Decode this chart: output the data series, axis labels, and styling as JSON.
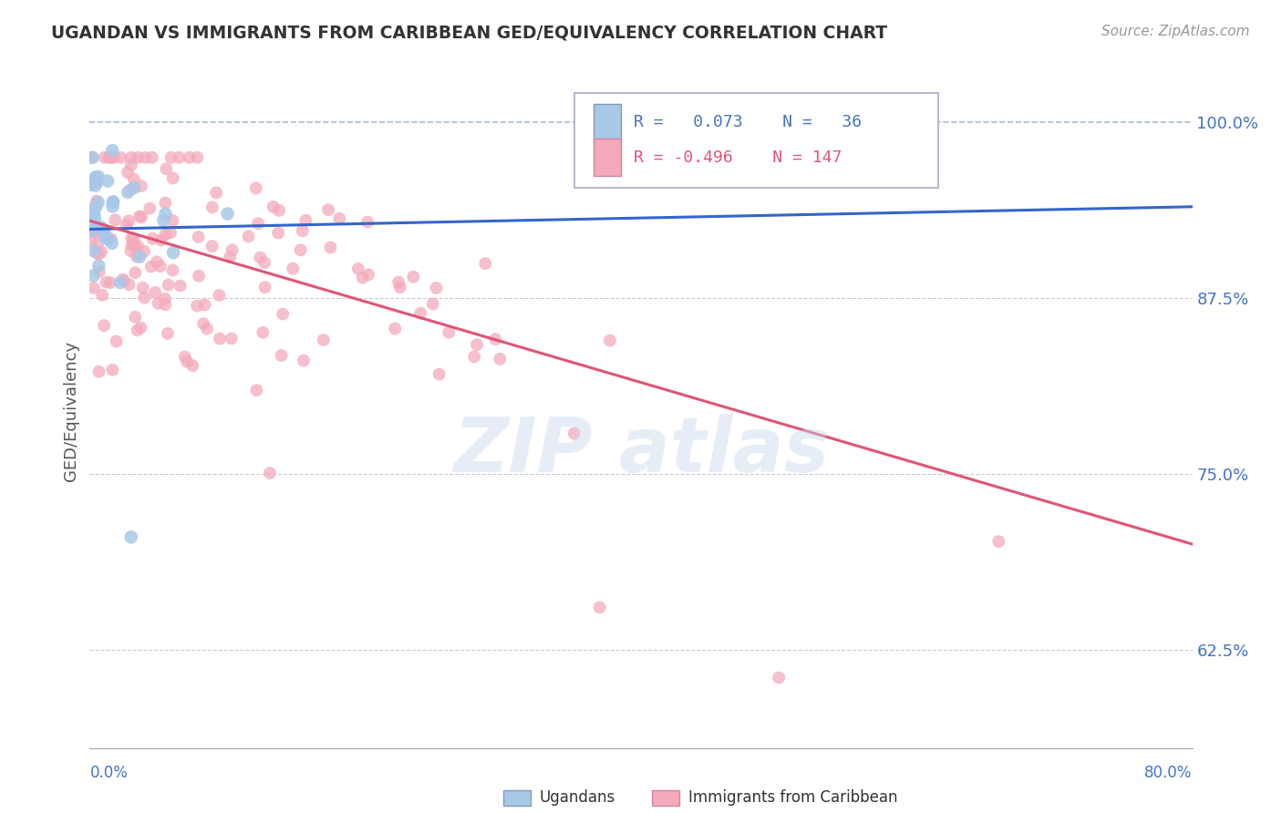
{
  "title": "UGANDAN VS IMMIGRANTS FROM CARIBBEAN GED/EQUIVALENCY CORRELATION CHART",
  "source": "Source: ZipAtlas.com",
  "ylabel": "GED/Equivalency",
  "ugandan_R": 0.073,
  "ugandan_N": 36,
  "carib_R": -0.496,
  "carib_N": 147,
  "ugandan_color": "#a8c8e8",
  "carib_color": "#f4aabb",
  "ugandan_line_color": "#3366cc",
  "ugandan_dash_color": "#88aade",
  "carib_line_color": "#e05575",
  "xmin": 0.0,
  "xmax": 0.8,
  "ymin": 0.555,
  "ymax": 1.035,
  "ytick_vals": [
    0.625,
    0.75,
    0.875,
    1.0
  ],
  "ytick_labels": [
    "62.5%",
    "75.0%",
    "87.5%",
    "100.0%"
  ],
  "legend_text_ug": "R =  0.073   N =  36",
  "legend_text_car": "R = -0.496   N = 147",
  "watermark_text": "ZIP atlas"
}
